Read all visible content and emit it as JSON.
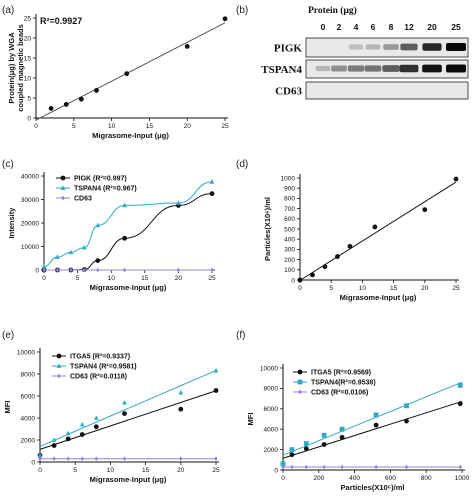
{
  "panel_labels": [
    "(a)",
    "(b)",
    "(c)",
    "(d)",
    "(e)",
    "(f)"
  ],
  "colors": {
    "black": "#111111",
    "cyan": "#2fa9c4",
    "purple": "#9b7fe0",
    "line_a": "#555555"
  },
  "chart_data": [
    {
      "id": "a",
      "type": "scatter",
      "xlabel": "Migrasome-Input (μg)",
      "ylabel": "Protein(μg) by WGA coupled magnetic beads",
      "xlim": [
        0,
        25
      ],
      "ylim": [
        0,
        25
      ],
      "xticks": [
        0,
        5,
        10,
        15,
        20,
        25
      ],
      "yticks": [
        0,
        5,
        10,
        15,
        20,
        25
      ],
      "annotations": [
        "R²=0.9927"
      ],
      "series": [
        {
          "color": "#111111",
          "fit": "linear",
          "x": [
            2,
            4,
            6,
            8,
            12,
            20,
            25
          ],
          "y": [
            2.4,
            3.4,
            4.7,
            6.9,
            11.1,
            17.9,
            24.8
          ]
        }
      ]
    },
    {
      "id": "b",
      "type": "western_blot",
      "header": "Protein (μg)",
      "lanes": [
        "0",
        "2",
        "4",
        "6",
        "8",
        "12",
        "20",
        "25"
      ],
      "rows": [
        {
          "label": "PIGK",
          "intensity": [
            0,
            0,
            0.05,
            0.1,
            0.25,
            0.55,
            0.85,
            1.0
          ]
        },
        {
          "label": "TSPAN4",
          "intensity": [
            0.1,
            0.3,
            0.4,
            0.45,
            0.55,
            0.8,
            0.95,
            1.0
          ]
        },
        {
          "label": "CD63",
          "intensity": [
            0,
            0,
            0,
            0,
            0,
            0,
            0,
            0
          ]
        }
      ]
    },
    {
      "id": "c",
      "type": "line",
      "xlabel": "Migrasome-Input (μg)",
      "ylabel": "Intensity",
      "xlim": [
        0,
        25
      ],
      "ylim": [
        0,
        40000
      ],
      "xticks": [
        0,
        5,
        10,
        15,
        20,
        25
      ],
      "yticks": [
        0,
        10000,
        20000,
        30000,
        40000
      ],
      "legend_position": "top-left",
      "series": [
        {
          "name": "PIGK (R²=0.997)",
          "color": "#111111",
          "marker": "circle",
          "fit": "sigmoid",
          "x": [
            0,
            2,
            4,
            6,
            8,
            12,
            20,
            25
          ],
          "y": [
            0,
            0,
            0,
            200,
            4000,
            13500,
            27500,
            32500
          ]
        },
        {
          "name": "TSPAN4 (R²=0.967)",
          "color": "#2fa9c4",
          "marker": "triangle",
          "fit": "sigmoid",
          "x": [
            0,
            2,
            4,
            6,
            8,
            12,
            20,
            25
          ],
          "y": [
            1500,
            5500,
            7500,
            9500,
            19000,
            27500,
            28500,
            37500
          ]
        },
        {
          "name": "CD63",
          "color": "#9b7fe0",
          "marker": "diamond",
          "fit": "flat",
          "x": [
            0,
            2,
            4,
            6,
            8,
            12,
            20,
            25
          ],
          "y": [
            0,
            0,
            0,
            0,
            0,
            0,
            0,
            0
          ]
        }
      ]
    },
    {
      "id": "d",
      "type": "scatter",
      "xlabel": "Migrasome-Input (μg)",
      "ylabel": "Particles(X10⁶)/ml",
      "xlim": [
        0,
        25
      ],
      "ylim": [
        0,
        1000
      ],
      "xticks": [
        0,
        5,
        10,
        15,
        20,
        25
      ],
      "yticks": [
        0,
        100,
        200,
        300,
        400,
        500,
        600,
        700,
        800,
        900,
        1000
      ],
      "series": [
        {
          "color": "#111111",
          "fit": "linear",
          "x": [
            0,
            2,
            4,
            6,
            8,
            12,
            20,
            25
          ],
          "y": [
            0,
            50,
            130,
            230,
            330,
            520,
            690,
            990
          ]
        }
      ]
    },
    {
      "id": "e",
      "type": "scatter",
      "xlabel": "Migrasome-Input (μg)",
      "ylabel": "MFI",
      "xlim": [
        0,
        25
      ],
      "ylim": [
        0,
        10000
      ],
      "xticks": [
        0,
        5,
        10,
        15,
        20,
        25
      ],
      "yticks": [
        0,
        2000,
        4000,
        6000,
        8000,
        10000
      ],
      "legend_position": "top-left",
      "series": [
        {
          "name": "ITGA5 (R²=0.9337)",
          "color": "#111111",
          "marker": "circle",
          "fit": "linear",
          "x": [
            0,
            2,
            4,
            6,
            8,
            12,
            20,
            25
          ],
          "y": [
            600,
            1500,
            2100,
            2500,
            3200,
            4400,
            4800,
            6500
          ]
        },
        {
          "name": "TSPAN4 (R²=0.9581)",
          "color": "#2fa9c4",
          "marker": "triangle",
          "fit": "linear",
          "x": [
            0,
            2,
            4,
            6,
            8,
            12,
            20,
            25
          ],
          "y": [
            600,
            2000,
            2600,
            3400,
            4000,
            5400,
            6300,
            8300
          ]
        },
        {
          "name": "CD63 (R²=0.0118)",
          "color": "#9b7fe0",
          "marker": "diamond",
          "fit": "linear",
          "x": [
            0,
            2,
            4,
            6,
            8,
            12,
            20,
            25
          ],
          "y": [
            300,
            300,
            300,
            300,
            300,
            300,
            300,
            300
          ]
        }
      ]
    },
    {
      "id": "f",
      "type": "scatter",
      "xlabel": "Particles(X10⁶)/ml",
      "ylabel": "MFI",
      "xlim": [
        0,
        1000
      ],
      "ylim": [
        0,
        10000
      ],
      "xticks": [
        0,
        200,
        400,
        600,
        800,
        1000
      ],
      "yticks": [
        0,
        2000,
        4000,
        6000,
        8000,
        10000
      ],
      "legend_position": "top-left",
      "series": [
        {
          "name": "ITGA5 (R²=0.9569)",
          "color": "#111111",
          "marker": "circle",
          "fit": "linear",
          "x": [
            0,
            50,
            130,
            230,
            330,
            520,
            690,
            990
          ],
          "y": [
            600,
            1500,
            2100,
            2500,
            3200,
            4400,
            4800,
            6500
          ]
        },
        {
          "name": "TSPAN4(R²=0.9538)",
          "color": "#2fa9c4",
          "marker": "square",
          "fit": "linear",
          "x": [
            0,
            50,
            130,
            230,
            330,
            520,
            690,
            990
          ],
          "y": [
            600,
            2000,
            2600,
            3400,
            4000,
            5400,
            6300,
            8300
          ]
        },
        {
          "name": "CD63 (R²=0.0106)",
          "color": "#9b7fe0",
          "marker": "diamond",
          "fit": "linear",
          "x": [
            0,
            50,
            130,
            230,
            330,
            520,
            690,
            990
          ],
          "y": [
            300,
            300,
            300,
            300,
            300,
            300,
            300,
            300
          ]
        }
      ]
    }
  ]
}
